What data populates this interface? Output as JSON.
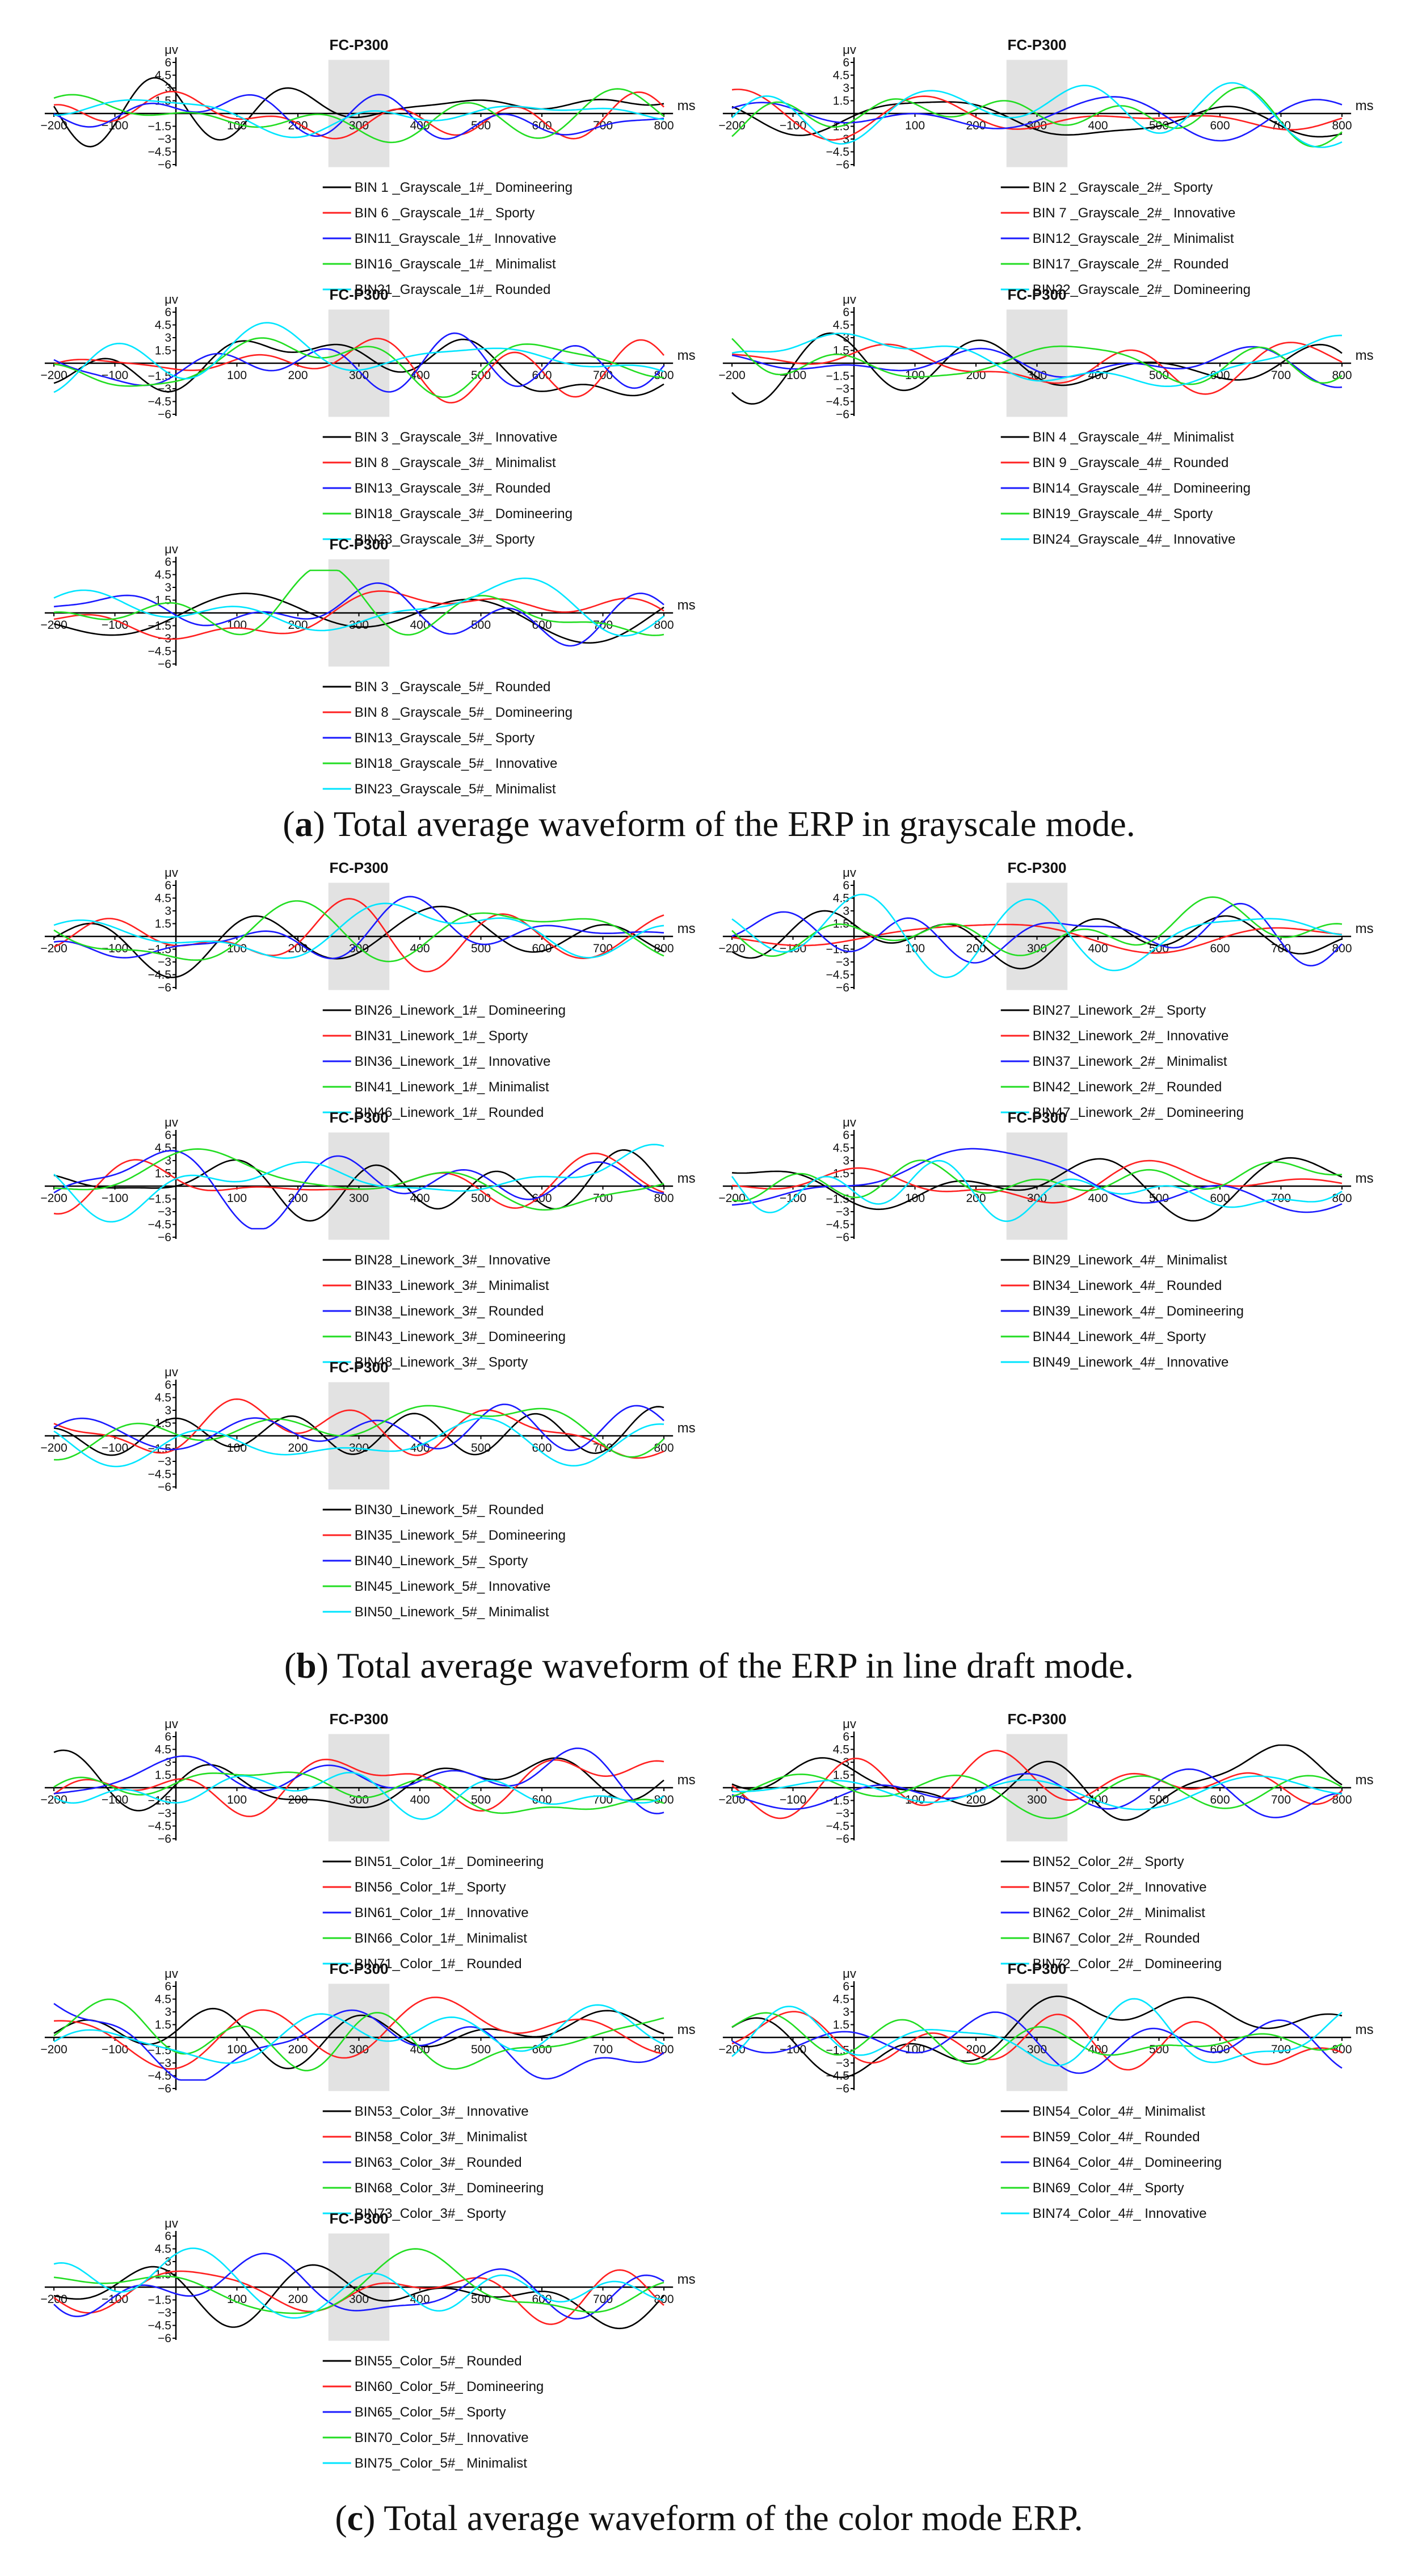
{
  "figure": {
    "sections": [
      {
        "caption_label": "a",
        "caption_text": "Total average waveform of the ERP in grayscale mode.",
        "panels": [
          {
            "title": "FC-P300",
            "legend": [
              "BIN 1 _Grayscale_1#_ Domineering",
              "BIN 6 _Grayscale_1#_ Sporty",
              "BIN11_Grayscale_1#_ Innovative",
              "BIN16_Grayscale_1#_ Minimalist",
              "BIN21_Grayscale_1#_ Rounded"
            ]
          },
          {
            "title": "FC-P300",
            "legend": [
              "BIN 2 _Grayscale_2#_ Sporty",
              "BIN 7 _Grayscale_2#_ Innovative",
              "BIN12_Grayscale_2#_ Minimalist",
              "BIN17_Grayscale_2#_ Rounded",
              "BIN22_Grayscale_2#_ Domineering"
            ]
          },
          {
            "title": "FC-P300",
            "legend": [
              "BIN 3 _Grayscale_3#_ Innovative",
              "BIN 8 _Grayscale_3#_ Minimalist",
              "BIN13_Grayscale_3#_ Rounded",
              "BIN18_Grayscale_3#_ Domineering",
              "BIN23_Grayscale_3#_ Sporty"
            ]
          },
          {
            "title": "FC-P300",
            "legend": [
              "BIN 4 _Grayscale_4#_ Minimalist",
              "BIN 9 _Grayscale_4#_ Rounded",
              "BIN14_Grayscale_4#_ Domineering",
              "BIN19_Grayscale_4#_ Sporty",
              "BIN24_Grayscale_4#_ Innovative"
            ]
          },
          {
            "title": "FC-P300",
            "legend": [
              "BIN 3 _Grayscale_5#_ Rounded",
              "BIN 8 _Grayscale_5#_ Domineering",
              "BIN13_Grayscale_5#_ Sporty",
              "BIN18_Grayscale_5#_ Innovative",
              "BIN23_Grayscale_5#_ Minimalist"
            ]
          }
        ]
      },
      {
        "caption_label": "b",
        "caption_text": "Total average waveform of the ERP in line draft mode.",
        "panels": [
          {
            "title": "FC-P300",
            "legend": [
              "BIN26_Linework_1#_ Domineering",
              "BIN31_Linework_1#_ Sporty",
              "BIN36_Linework_1#_ Innovative",
              "BIN41_Linework_1#_ Minimalist",
              "BIN46_Linework_1#_ Rounded"
            ]
          },
          {
            "title": "FC-P300",
            "legend": [
              "BIN27_Linework_2#_ Sporty",
              "BIN32_Linework_2#_ Innovative",
              "BIN37_Linework_2#_ Minimalist",
              "BIN42_Linework_2#_ Rounded",
              "BIN47_Linework_2#_ Domineering"
            ]
          },
          {
            "title": "FC-P300",
            "legend": [
              "BIN28_Linework_3#_ Innovative",
              "BIN33_Linework_3#_ Minimalist",
              "BIN38_Linework_3#_ Rounded",
              "BIN43_Linework_3#_ Domineering",
              "BIN48_Linework_3#_ Sporty"
            ]
          },
          {
            "title": "FC-P300",
            "legend": [
              "BIN29_Linework_4#_ Minimalist",
              "BIN34_Linework_4#_ Rounded",
              "BIN39_Linework_4#_ Domineering",
              "BIN44_Linework_4#_ Sporty",
              "BIN49_Linework_4#_ Innovative"
            ]
          },
          {
            "title": "FC-P300",
            "legend": [
              "BIN30_Linework_5#_ Rounded",
              "BIN35_Linework_5#_ Domineering",
              "BIN40_Linework_5#_ Sporty",
              "BIN45_Linework_5#_ Innovative",
              "BIN50_Linework_5#_ Minimalist"
            ]
          }
        ]
      },
      {
        "caption_label": "c",
        "caption_text": "Total average waveform of the color mode ERP.",
        "panels": [
          {
            "title": "FC-P300",
            "legend": [
              "BIN51_Color_1#_ Domineering",
              "BIN56_Color_1#_ Sporty",
              "BIN61_Color_1#_ Innovative",
              "BIN66_Color_1#_ Minimalist",
              "BIN71_Color_1#_ Rounded"
            ]
          },
          {
            "title": "FC-P300",
            "legend": [
              "BIN52_Color_2#_ Sporty",
              "BIN57_Color_2#_ Innovative",
              "BIN62_Color_2#_ Minimalist",
              "BIN67_Color_2#_ Rounded",
              "BIN72_Color_2#_ Domineering"
            ]
          },
          {
            "title": "FC-P300",
            "legend": [
              "BIN53_Color_3#_ Innovative",
              "BIN58_Color_3#_ Minimalist",
              "BIN63_Color_3#_ Rounded",
              "BIN68_Color_3#_ Domineering",
              "BIN73_Color_3#_ Sporty"
            ]
          },
          {
            "title": "FC-P300",
            "legend": [
              "BIN54_Color_4#_ Minimalist",
              "BIN59_Color_4#_ Rounded",
              "BIN64_Color_4#_ Domineering",
              "BIN69_Color_4#_ Sporty",
              "BIN74_Color_4#_ Innovative"
            ]
          },
          {
            "title": "FC-P300",
            "legend": [
              "BIN55_Color_5#_ Rounded",
              "BIN60_Color_5#_ Domineering",
              "BIN65_Color_5#_ Sporty",
              "BIN70_Color_5#_ Innovative",
              "BIN75_Color_5#_ Minimalist"
            ]
          }
        ]
      }
    ]
  },
  "chart_data": {
    "type": "line",
    "panel_count": 15,
    "x_unit": "ms",
    "y_unit": "μv",
    "xlim": [
      -200,
      800
    ],
    "ylim": [
      -6,
      6
    ],
    "x_ticks": [
      "−200",
      "−100",
      "100",
      "200",
      "300",
      "400",
      "500",
      "600",
      "700",
      "800"
    ],
    "x_tick_values": [
      -200,
      -100,
      100,
      200,
      300,
      400,
      500,
      600,
      700,
      800
    ],
    "y_ticks": [
      "6",
      "4.5",
      "3",
      "1.5",
      "−1.5",
      "−3",
      "−4.5",
      "−6"
    ],
    "y_tick_values": [
      6,
      4.5,
      3,
      1.5,
      -1.5,
      -3,
      -4.5,
      -6
    ],
    "highlight_window_ms": [
      250,
      350
    ],
    "series_colors": [
      "#000000",
      "#ff2020",
      "#1a1aff",
      "#22dd22",
      "#00e5ff"
    ],
    "note": "Each panel contains 5 ERP waveforms (amplitudes between about −4.5 and 4.5 μv over −200 to 800 ms); legend names are listed per panel in figure.sections."
  }
}
